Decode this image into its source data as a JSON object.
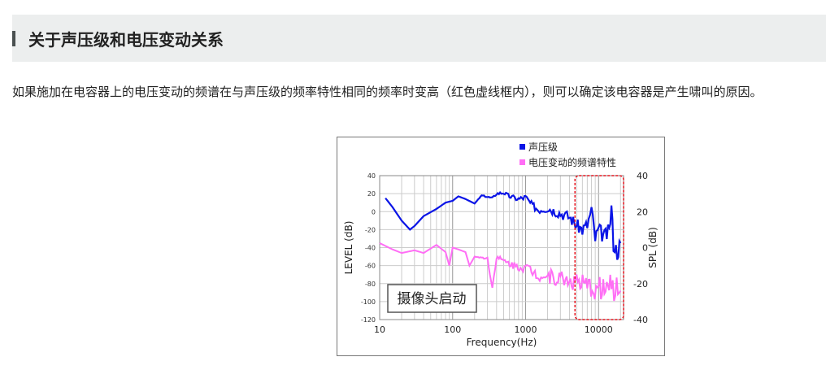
{
  "section": {
    "title": "关于声压级和电压变动关系"
  },
  "paragraph": "如果施加在电容器上的电压变动的频谱在与声压级的频率特性相同的频率时变高（红色虚线框内），则可以确定该电容器是产生啸叫的原因。",
  "chart_data": {
    "type": "line",
    "xlabel": "Frequency(Hz)",
    "ylabel": "LEVEL (dB)",
    "y2label": "SPL (dB)",
    "xscale": "log",
    "xlim": [
      10,
      22000
    ],
    "ylim": [
      -120,
      40
    ],
    "y2lim": [
      -40,
      40
    ],
    "xticks": [
      "10",
      "100",
      "1000",
      "10000"
    ],
    "yticks": [
      "40",
      "20",
      "0",
      "-20",
      "-40",
      "-60",
      "-80",
      "-100",
      "-120"
    ],
    "y2ticks": [
      "40",
      "20",
      "0",
      "-20",
      "-40"
    ],
    "grid": true,
    "legend_position": "top-right",
    "annotation": "摄像头启动",
    "highlight_range_hz": [
      5000,
      20000
    ],
    "colors": {
      "spl": "#0a14e6",
      "voltage": "#ff6ef5",
      "highlight": "#e8141e"
    },
    "series": [
      {
        "name": "声压级",
        "x": [
          12,
          15,
          20,
          26,
          30,
          40,
          60,
          80,
          100,
          120,
          150,
          200,
          250,
          350,
          400,
          500,
          600,
          800,
          1000,
          1200,
          1500,
          2000,
          3000,
          4000,
          5000,
          6000,
          7000,
          8000,
          9000,
          10000,
          12000,
          14000,
          15000,
          16000,
          18000,
          20000
        ],
        "values": [
          15,
          5,
          -10,
          -20,
          -16,
          -5,
          3,
          10,
          12,
          17,
          14,
          9,
          18,
          15,
          20,
          21,
          17,
          14,
          16,
          8,
          2,
          4,
          -2,
          -6,
          -15,
          -20,
          -15,
          2,
          -30,
          -20,
          -28,
          -22,
          5,
          -35,
          -45,
          -35
        ]
      },
      {
        "name": "电压变动的频谱特性",
        "x": [
          10,
          15,
          20,
          30,
          40,
          60,
          80,
          90,
          100,
          120,
          150,
          170,
          200,
          300,
          350,
          400,
          500,
          700,
          1000,
          1500,
          2000,
          3000,
          5000,
          7000,
          10000,
          15000,
          20000
        ],
        "values": [
          -35,
          -42,
          -46,
          -43,
          -46,
          -37,
          -45,
          -60,
          -40,
          -42,
          -45,
          -60,
          -50,
          -52,
          -85,
          -50,
          -55,
          -60,
          -62,
          -70,
          -72,
          -74,
          -78,
          -85,
          -85,
          -85,
          -88
        ]
      }
    ]
  }
}
